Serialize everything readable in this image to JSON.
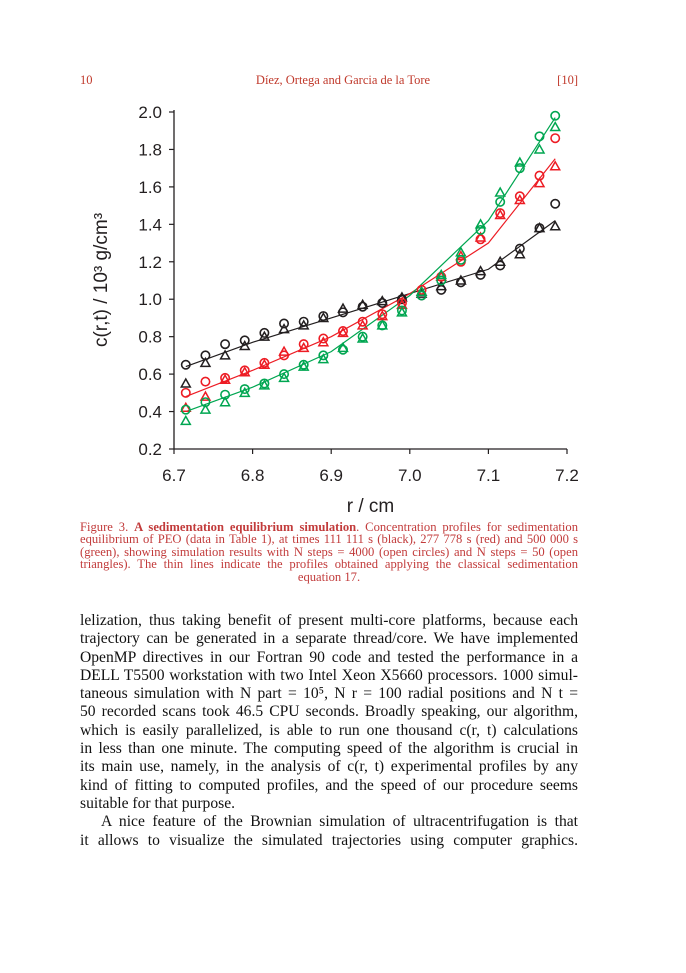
{
  "header": {
    "page_number": "10",
    "authors": "Díez, Ortega and Garcia de la Tore",
    "tag": "[10]"
  },
  "chart_data": {
    "type": "scatter",
    "xlabel": "r / cm",
    "ylabel": "c(r,t)  / 10³ g/cm³",
    "xlim": [
      6.7,
      7.2
    ],
    "ylim": [
      0.2,
      2.0
    ],
    "xticks": [
      "6.7",
      "6.8",
      "6.9",
      "7.0",
      "7.1",
      "7.2"
    ],
    "yticks": [
      "0.2",
      "0.4",
      "0.6",
      "0.8",
      "1.0",
      "1.2",
      "1.4",
      "1.6",
      "1.8",
      "2.0"
    ],
    "grid": false,
    "colors": {
      "black": "#231f20",
      "red": "#ed1c24",
      "green": "#00a651"
    },
    "x": [
      6.715,
      6.74,
      6.765,
      6.79,
      6.815,
      6.84,
      6.865,
      6.89,
      6.915,
      6.94,
      6.965,
      6.99,
      7.015,
      7.04,
      7.065,
      7.09,
      7.115,
      7.14,
      7.165,
      7.185
    ],
    "series": [
      {
        "color": "black",
        "marker": "circle",
        "values": [
          0.65,
          0.7,
          0.76,
          0.78,
          0.82,
          0.87,
          0.88,
          0.91,
          0.93,
          0.96,
          0.98,
          1.0,
          1.02,
          1.05,
          1.09,
          1.13,
          1.18,
          1.27,
          1.38,
          1.51
        ]
      },
      {
        "color": "black",
        "marker": "triangle",
        "values": [
          0.55,
          0.66,
          0.7,
          0.75,
          0.8,
          0.84,
          0.86,
          0.9,
          0.95,
          0.97,
          0.99,
          1.01,
          1.03,
          1.07,
          1.1,
          1.15,
          1.2,
          1.24,
          1.38,
          1.39
        ]
      },
      {
        "color": "red",
        "marker": "circle",
        "values": [
          0.5,
          0.56,
          0.58,
          0.62,
          0.66,
          0.7,
          0.76,
          0.79,
          0.83,
          0.88,
          0.92,
          0.98,
          1.05,
          1.12,
          1.2,
          1.32,
          1.46,
          1.55,
          1.66,
          1.86
        ]
      },
      {
        "color": "red",
        "marker": "triangle",
        "values": [
          0.42,
          0.48,
          0.57,
          0.61,
          0.65,
          0.72,
          0.74,
          0.77,
          0.82,
          0.86,
          0.91,
          0.97,
          1.04,
          1.12,
          1.23,
          1.33,
          1.45,
          1.53,
          1.62,
          1.71
        ]
      },
      {
        "color": "green",
        "marker": "circle",
        "values": [
          0.41,
          0.45,
          0.49,
          0.52,
          0.55,
          0.6,
          0.65,
          0.7,
          0.73,
          0.8,
          0.86,
          0.94,
          1.02,
          1.1,
          1.21,
          1.37,
          1.52,
          1.7,
          1.87,
          1.98
        ]
      },
      {
        "color": "green",
        "marker": "triangle",
        "values": [
          0.35,
          0.41,
          0.45,
          0.5,
          0.54,
          0.58,
          0.64,
          0.68,
          0.74,
          0.79,
          0.86,
          0.93,
          1.04,
          1.13,
          1.25,
          1.4,
          1.57,
          1.73,
          1.8,
          1.92
        ]
      }
    ],
    "lines": [
      {
        "color": "black",
        "x": [
          6.715,
          6.8,
          6.9,
          7.0,
          7.1,
          7.185
        ],
        "y": [
          0.64,
          0.77,
          0.9,
          1.03,
          1.16,
          1.42
        ]
      },
      {
        "color": "red",
        "x": [
          6.715,
          6.8,
          6.9,
          7.0,
          7.1,
          7.185
        ],
        "y": [
          0.48,
          0.62,
          0.8,
          1.03,
          1.3,
          1.75
        ]
      },
      {
        "color": "green",
        "x": [
          6.715,
          6.8,
          6.9,
          7.0,
          7.1,
          7.185
        ],
        "y": [
          0.4,
          0.53,
          0.72,
          1.02,
          1.42,
          1.97
        ]
      }
    ]
  },
  "caption": {
    "label": "Figure 3.",
    "title": "A sedimentation equilibrium simulation",
    "text": ".  Concentration profiles for sedimentation equilibrium of PEO (data in Table 1), at times 111 111 s (black), 277 778 s (red) and 500 000 s (green), showing simulation results with N steps = 4000 (open circles) and N steps = 50 (open triangles).  The thin lines indicate the profiles obtained applying the classical sedimentation equation 17."
  },
  "body": {
    "lines": [
      "lelization, thus taking benefit of present multi-core platforms, because each",
      "trajectory can be generated in a separate thread/core. We have implemented",
      "OpenMP directives in our Fortran 90 code and tested the performance in a",
      "DELL T5500 workstation with two Intel Xeon X5660 processors. 1000 simul-",
      "taneous simulation with N part = 10⁵, N r = 100 radial positions and N t =",
      "50 recorded scans took 46.5 CPU seconds. Broadly speaking, our algorithm,",
      "which is easily parallelized, is able to run one thousand c(r, t) calculations",
      "in less than one minute. The computing speed of the algorithm is crucial in",
      "its main use, namely, in the analysis of c(r, t) experimental profiles by any",
      "kind of fitting to computed profiles, and the speed of our procedure seems",
      "suitable for that purpose.",
      "A nice feature of the Brownian simulation of ultracentrifugation is that",
      "it allows to visualize the simulated trajectories using computer graphics."
    ]
  }
}
